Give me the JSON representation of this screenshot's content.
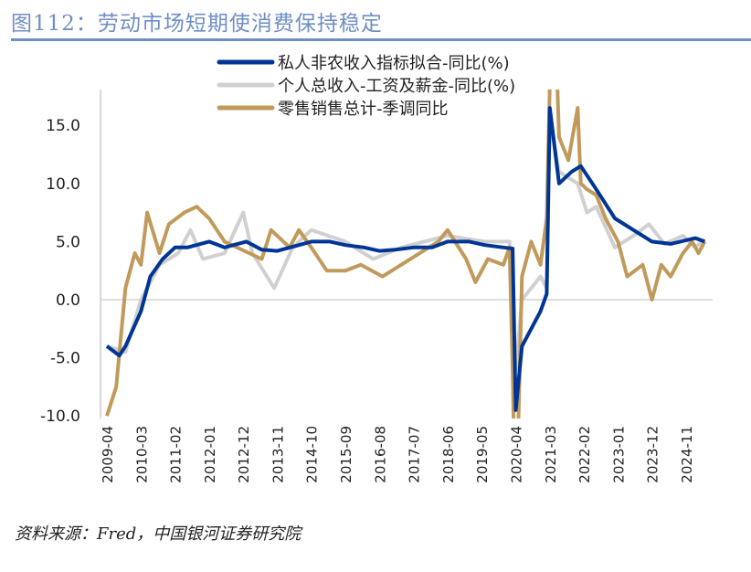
{
  "title": "图112：劳动市场短期使消费保持稳定",
  "source": "资料来源：Fred，中国银河证券研究院",
  "chart_data": {
    "type": "line",
    "title": "",
    "xlabel": "",
    "ylabel": "",
    "ylim": [
      -10,
      18
    ],
    "yticks": [
      "-10.0",
      "-5.0",
      "0.0",
      "5.0",
      "10.0",
      "15.0"
    ],
    "ytick_values": [
      -10,
      -5,
      0,
      5,
      10,
      15
    ],
    "xticks": [
      "2009-04",
      "2010-03",
      "2011-02",
      "2012-01",
      "2012-12",
      "2013-11",
      "2014-10",
      "2015-09",
      "2016-08",
      "2017-07",
      "2018-06",
      "2019-05",
      "2020-04",
      "2021-03",
      "2022-02",
      "2023-01",
      "2023-12",
      "2024-11"
    ],
    "grid": false,
    "legend_position": "top-center",
    "series": [
      {
        "name": "私人非农收入指标拟合-同比(%)",
        "color": "#003595",
        "points": [
          [
            "2009-04",
            -4
          ],
          [
            "2009-08",
            -4.8
          ],
          [
            "2009-10",
            -4
          ],
          [
            "2010-03",
            -1
          ],
          [
            "2010-06",
            2
          ],
          [
            "2010-10",
            3.5
          ],
          [
            "2011-02",
            4.5
          ],
          [
            "2011-06",
            4.5
          ],
          [
            "2012-01",
            5
          ],
          [
            "2012-06",
            4.5
          ],
          [
            "2013-01",
            5
          ],
          [
            "2013-06",
            4.3
          ],
          [
            "2013-11",
            4.2
          ],
          [
            "2014-06",
            4.7
          ],
          [
            "2014-10",
            5
          ],
          [
            "2015-04",
            5
          ],
          [
            "2015-09",
            4.7
          ],
          [
            "2016-03",
            4.5
          ],
          [
            "2016-08",
            4.2
          ],
          [
            "2017-01",
            4.3
          ],
          [
            "2017-07",
            4.5
          ],
          [
            "2018-01",
            4.5
          ],
          [
            "2018-06",
            5
          ],
          [
            "2019-01",
            5
          ],
          [
            "2019-06",
            4.7
          ],
          [
            "2019-12",
            4.5
          ],
          [
            "2020-03",
            4.4
          ],
          [
            "2020-04",
            -9.5
          ],
          [
            "2020-06",
            -4
          ],
          [
            "2020-12",
            -1
          ],
          [
            "2021-02",
            0.5
          ],
          [
            "2021-03",
            16.5
          ],
          [
            "2021-06",
            10
          ],
          [
            "2021-10",
            11
          ],
          [
            "2022-01",
            11.5
          ],
          [
            "2022-06",
            9.5
          ],
          [
            "2022-12",
            7
          ],
          [
            "2023-06",
            6
          ],
          [
            "2023-12",
            5
          ],
          [
            "2024-06",
            4.8
          ],
          [
            "2025-02",
            5.3
          ],
          [
            "2025-05",
            5
          ]
        ]
      },
      {
        "name": "个人总收入-工资及薪金-同比(%)",
        "color": "#d0d0d0",
        "points": [
          [
            "2009-04",
            -4
          ],
          [
            "2009-10",
            -4.5
          ],
          [
            "2010-03",
            0
          ],
          [
            "2010-09",
            3
          ],
          [
            "2011-03",
            4
          ],
          [
            "2011-07",
            6
          ],
          [
            "2011-11",
            3.5
          ],
          [
            "2012-06",
            4
          ],
          [
            "2012-12",
            7.5
          ],
          [
            "2013-03",
            4
          ],
          [
            "2013-10",
            1
          ],
          [
            "2014-04",
            4.5
          ],
          [
            "2014-10",
            6
          ],
          [
            "2015-09",
            5
          ],
          [
            "2016-06",
            3.5
          ],
          [
            "2017-03",
            4.5
          ],
          [
            "2018-06",
            5.5
          ],
          [
            "2019-06",
            5
          ],
          [
            "2020-02",
            5
          ],
          [
            "2020-04",
            -6
          ],
          [
            "2020-06",
            0
          ],
          [
            "2020-12",
            2
          ],
          [
            "2021-02",
            1
          ],
          [
            "2021-03",
            15.5
          ],
          [
            "2021-06",
            11
          ],
          [
            "2021-12",
            10
          ],
          [
            "2022-03",
            7.5
          ],
          [
            "2022-06",
            8
          ],
          [
            "2022-12",
            4.5
          ],
          [
            "2023-06",
            5.5
          ],
          [
            "2023-11",
            6.5
          ],
          [
            "2024-04",
            4.8
          ],
          [
            "2024-10",
            5.5
          ],
          [
            "2025-02",
            4.5
          ],
          [
            "2025-05",
            5.2
          ]
        ]
      },
      {
        "name": "零售销售总计-季调同比",
        "color": "#c19a5b",
        "points": [
          [
            "2009-04",
            -10
          ],
          [
            "2009-07",
            -7.5
          ],
          [
            "2009-10",
            1
          ],
          [
            "2010-01",
            4
          ],
          [
            "2010-03",
            3
          ],
          [
            "2010-05",
            7.5
          ],
          [
            "2010-09",
            4
          ],
          [
            "2010-12",
            6.5
          ],
          [
            "2011-05",
            7.5
          ],
          [
            "2011-09",
            8
          ],
          [
            "2012-01",
            7
          ],
          [
            "2012-06",
            5
          ],
          [
            "2012-10",
            4.5
          ],
          [
            "2013-06",
            3.5
          ],
          [
            "2013-09",
            6
          ],
          [
            "2014-03",
            4.5
          ],
          [
            "2014-06",
            6
          ],
          [
            "2014-10",
            4.5
          ],
          [
            "2015-03",
            2.5
          ],
          [
            "2015-09",
            2.5
          ],
          [
            "2016-02",
            3
          ],
          [
            "2016-09",
            2
          ],
          [
            "2017-03",
            3
          ],
          [
            "2017-09",
            4
          ],
          [
            "2018-03",
            5
          ],
          [
            "2018-06",
            6
          ],
          [
            "2018-12",
            3.5
          ],
          [
            "2019-03",
            1.5
          ],
          [
            "2019-07",
            3.5
          ],
          [
            "2019-12",
            3
          ],
          [
            "2020-02",
            4.5
          ],
          [
            "2020-03",
            -6
          ],
          [
            "2020-04",
            -20
          ],
          [
            "2020-06",
            2
          ],
          [
            "2020-09",
            5
          ],
          [
            "2020-12",
            3
          ],
          [
            "2021-02",
            7
          ],
          [
            "2021-04",
            30
          ],
          [
            "2021-06",
            14
          ],
          [
            "2021-09",
            12
          ],
          [
            "2021-12",
            16.5
          ],
          [
            "2022-01",
            10
          ],
          [
            "2022-03",
            9.5
          ],
          [
            "2022-06",
            9
          ],
          [
            "2022-09",
            7
          ],
          [
            "2023-01",
            5
          ],
          [
            "2023-04",
            2
          ],
          [
            "2023-09",
            3
          ],
          [
            "2023-12",
            0
          ],
          [
            "2024-03",
            3
          ],
          [
            "2024-06",
            2
          ],
          [
            "2024-10",
            4
          ],
          [
            "2025-01",
            5
          ],
          [
            "2025-03",
            4
          ],
          [
            "2025-05",
            5
          ]
        ]
      }
    ]
  }
}
